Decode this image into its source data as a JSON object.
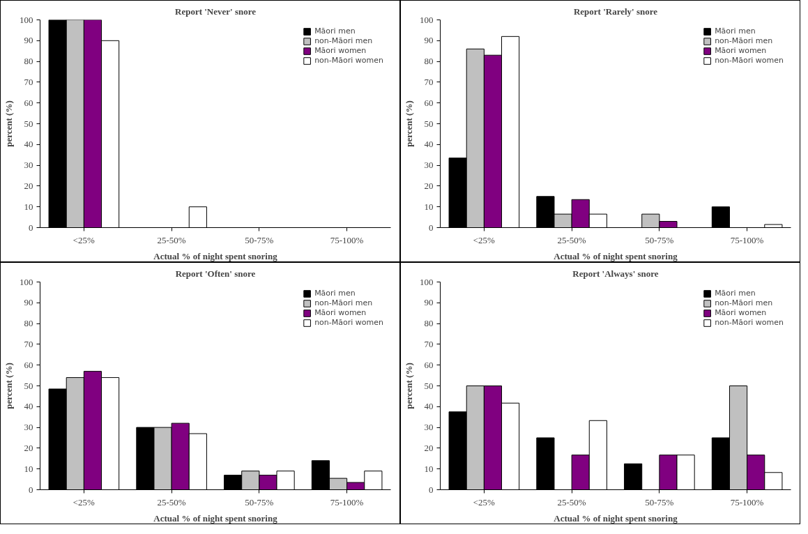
{
  "chart_data": [
    {
      "type": "bar",
      "title": "Report 'Never' snore",
      "xlabel": "Actual % of night spent snoring",
      "ylabel": "percent (%)",
      "categories": [
        "<25%",
        "25-50%",
        "50-75%",
        "75-100%"
      ],
      "ylim": [
        0,
        100
      ],
      "yticks": [
        0,
        10,
        20,
        30,
        40,
        50,
        60,
        70,
        80,
        90,
        100
      ],
      "grid": false,
      "legend": "top right",
      "series": [
        {
          "name": "Māori men",
          "color": "#000000",
          "values": [
            100,
            0,
            0,
            0
          ]
        },
        {
          "name": "non-Māori men",
          "color": "#c0c0c0",
          "values": [
            100,
            0,
            0,
            0
          ]
        },
        {
          "name": "Māori women",
          "color": "#800080",
          "values": [
            100,
            0,
            0,
            0
          ]
        },
        {
          "name": "non-Māori women",
          "color": "#ffffff",
          "values": [
            90,
            10,
            0,
            0
          ]
        }
      ]
    },
    {
      "type": "bar",
      "title": "Report 'Rarely' snore",
      "xlabel": "Actual % of night spent snoring",
      "ylabel": "percent (%)",
      "categories": [
        "<25%",
        "25-50%",
        "50-75%",
        "75-100%"
      ],
      "ylim": [
        0,
        100
      ],
      "yticks": [
        0,
        10,
        20,
        30,
        40,
        50,
        60,
        70,
        80,
        90,
        100
      ],
      "grid": false,
      "legend": "top right",
      "series": [
        {
          "name": "Māori men",
          "color": "#000000",
          "values": [
            33.5,
            15,
            0,
            10
          ]
        },
        {
          "name": "non-Māori men",
          "color": "#c0c0c0",
          "values": [
            86,
            6.5,
            6.5,
            0
          ]
        },
        {
          "name": "Māori women",
          "color": "#800080",
          "values": [
            83,
            13.5,
            3,
            0
          ]
        },
        {
          "name": "non-Māori women",
          "color": "#ffffff",
          "values": [
            92,
            6.5,
            0,
            1.5
          ]
        }
      ]
    },
    {
      "type": "bar",
      "title": "Report 'Often' snore",
      "xlabel": "Actual % of night spent snoring",
      "ylabel": "percent (%)",
      "categories": [
        "<25%",
        "25-50%",
        "50-75%",
        "75-100%"
      ],
      "ylim": [
        0,
        100
      ],
      "yticks": [
        0,
        10,
        20,
        30,
        40,
        50,
        60,
        70,
        80,
        90,
        100
      ],
      "grid": false,
      "legend": "top right",
      "series": [
        {
          "name": "Māori men",
          "color": "#000000",
          "values": [
            48.5,
            30,
            7,
            14
          ]
        },
        {
          "name": "non-Māori men",
          "color": "#c0c0c0",
          "values": [
            54,
            30,
            9,
            5.5
          ]
        },
        {
          "name": "Māori women",
          "color": "#800080",
          "values": [
            57,
            32,
            7,
            3.5
          ]
        },
        {
          "name": "non-Māori women",
          "color": "#ffffff",
          "values": [
            54,
            27,
            9,
            9
          ]
        }
      ]
    },
    {
      "type": "bar",
      "title": "Report 'Always' snore",
      "xlabel": "Actual % of night spent snoring",
      "ylabel": "percent (%)",
      "categories": [
        "<25%",
        "25-50%",
        "50-75%",
        "75-100%"
      ],
      "ylim": [
        0,
        100
      ],
      "yticks": [
        0,
        10,
        20,
        30,
        40,
        50,
        60,
        70,
        80,
        90,
        100
      ],
      "grid": false,
      "legend": "top right",
      "series": [
        {
          "name": "Māori men",
          "color": "#000000",
          "values": [
            37.5,
            25,
            12.5,
            25
          ]
        },
        {
          "name": "non-Māori men",
          "color": "#c0c0c0",
          "values": [
            50,
            0,
            0,
            50
          ]
        },
        {
          "name": "Māori women",
          "color": "#800080",
          "values": [
            50,
            16.7,
            16.7,
            16.7
          ]
        },
        {
          "name": "non-Māori women",
          "color": "#ffffff",
          "values": [
            41.7,
            33.3,
            16.7,
            8.3
          ]
        }
      ]
    }
  ]
}
